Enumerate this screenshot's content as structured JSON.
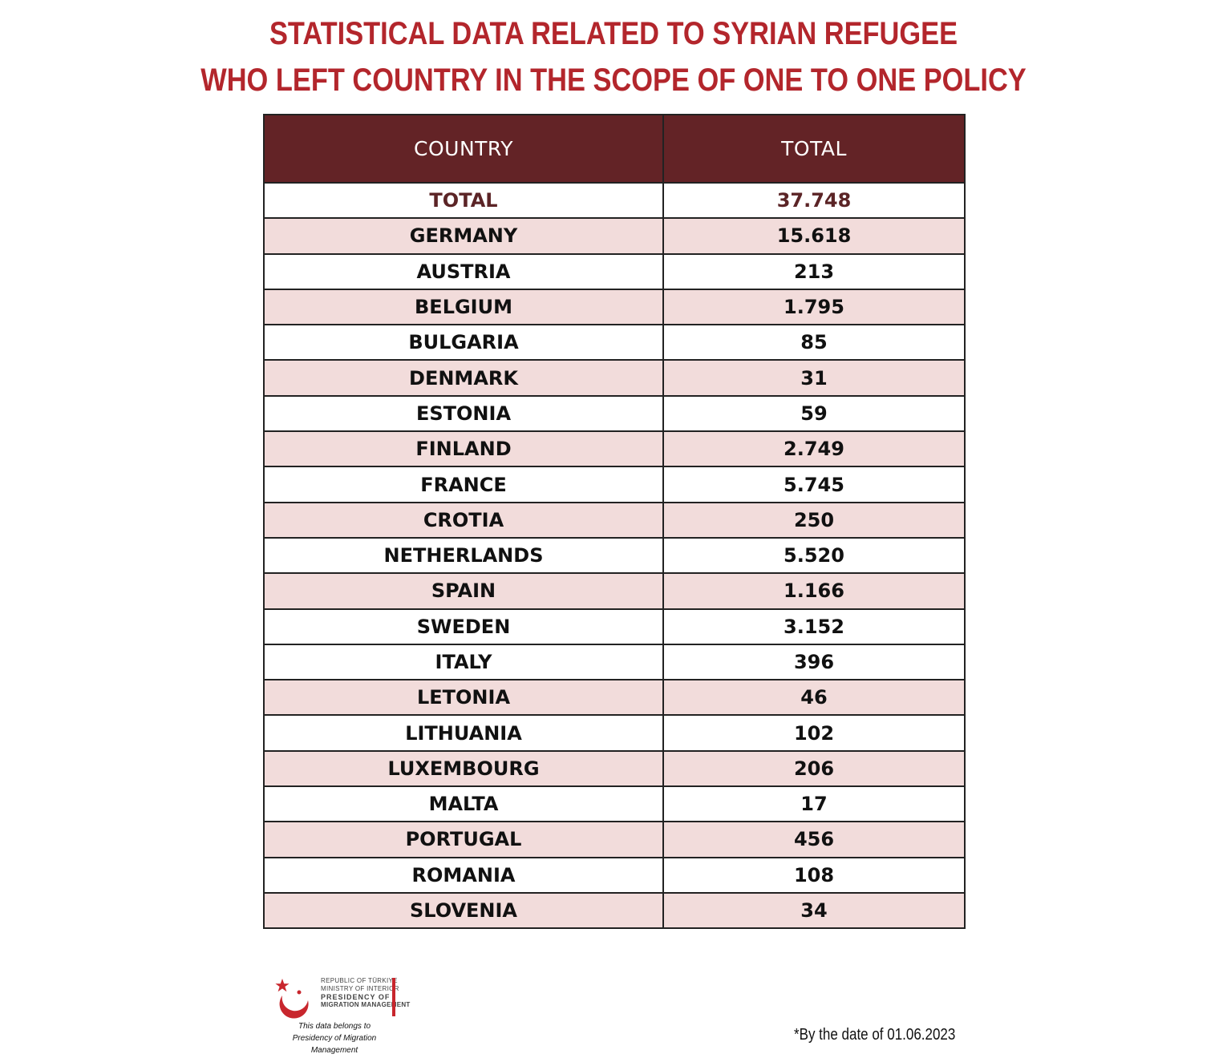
{
  "title_line1": "STATISTICAL DATA RELATED TO SYRIAN REFUGEE",
  "title_line2": "WHO LEFT COUNTRY IN THE SCOPE OF ONE TO ONE POLICY",
  "table": {
    "headers": [
      "COUNTRY",
      "TOTAL"
    ],
    "rows": [
      [
        "TOTAL",
        "37.748"
      ],
      [
        "GERMANY",
        "15.618"
      ],
      [
        "AUSTRIA",
        "213"
      ],
      [
        "BELGIUM",
        "1.795"
      ],
      [
        "BULGARIA",
        "85"
      ],
      [
        "DENMARK",
        "31"
      ],
      [
        "ESTONIA",
        "59"
      ],
      [
        "FINLAND",
        "2.749"
      ],
      [
        "FRANCE",
        "5.745"
      ],
      [
        "CROTIA",
        "250"
      ],
      [
        "NETHERLANDS",
        "5.520"
      ],
      [
        "SPAIN",
        "1.166"
      ],
      [
        "SWEDEN",
        "3.152"
      ],
      [
        "ITALY",
        "396"
      ],
      [
        "LETONIA",
        "46"
      ],
      [
        "LITHUANIA",
        "102"
      ],
      [
        "LUXEMBOURG",
        "206"
      ],
      [
        "MALTA",
        "17"
      ],
      [
        "PORTUGAL",
        "456"
      ],
      [
        "ROMANIA",
        "108"
      ],
      [
        "SLOVENIA",
        "34"
      ]
    ]
  },
  "logo": {
    "line1": "REPUBLIC OF TÜRKIYE",
    "line2": "MINISTRY OF INTERIOR",
    "line3": "PRESIDENCY OF",
    "line4": "MIGRATION MANAGEMENT",
    "icon": "crescent-star-icon",
    "color": "#c8262d"
  },
  "belongs_line1": "This data belongs to",
  "belongs_line2": "Presidency of Migration Management",
  "footnote": "*By the date of 01.06.2023",
  "colors": {
    "title": "#b3262c",
    "header_bg": "#632326",
    "pink_row": "#f2dcdb"
  }
}
